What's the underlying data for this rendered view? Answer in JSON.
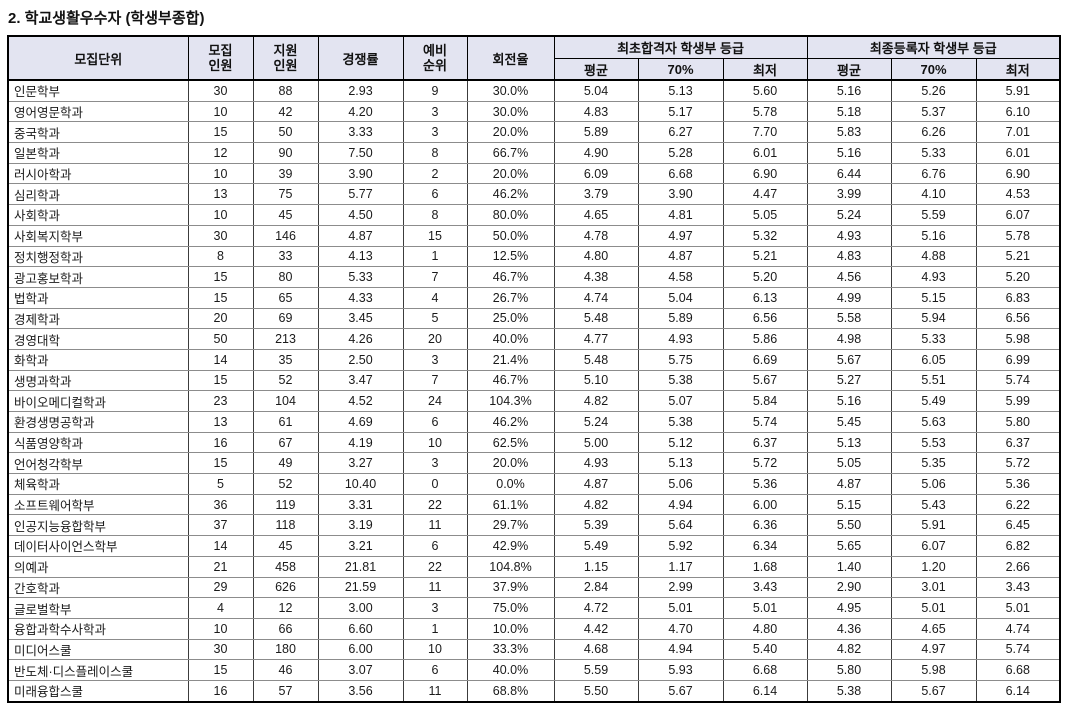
{
  "title": "2. 학교생활우수자 (학생부종합)",
  "colors": {
    "header_bg": "#e3e4f1",
    "outer_border": "#000000",
    "inner_vertical_border": "#3c3c3c",
    "inner_horizontal_border": "#8c8c8c"
  },
  "table": {
    "headers": {
      "unit": "모집단위",
      "recruit": "모집\n인원",
      "applicants": "지원\n인원",
      "ratio": "경쟁률",
      "reserve": "예비\n순위",
      "turnover": "회전율",
      "group_initial": "최초합격자 학생부 등급",
      "group_final": "최종등록자 학생부 등급",
      "sub_avg1": "평균",
      "sub_70_1": "70%",
      "sub_min1": "최저",
      "sub_avg2": "평균",
      "sub_70_2": "70%",
      "sub_min2": "최저"
    },
    "rows": [
      [
        "인문학부",
        "30",
        "88",
        "2.93",
        "9",
        "30.0%",
        "5.04",
        "5.13",
        "5.60",
        "5.16",
        "5.26",
        "5.91"
      ],
      [
        "영어영문학과",
        "10",
        "42",
        "4.20",
        "3",
        "30.0%",
        "4.83",
        "5.17",
        "5.78",
        "5.18",
        "5.37",
        "6.10"
      ],
      [
        "중국학과",
        "15",
        "50",
        "3.33",
        "3",
        "20.0%",
        "5.89",
        "6.27",
        "7.70",
        "5.83",
        "6.26",
        "7.01"
      ],
      [
        "일본학과",
        "12",
        "90",
        "7.50",
        "8",
        "66.7%",
        "4.90",
        "5.28",
        "6.01",
        "5.16",
        "5.33",
        "6.01"
      ],
      [
        "러시아학과",
        "10",
        "39",
        "3.90",
        "2",
        "20.0%",
        "6.09",
        "6.68",
        "6.90",
        "6.44",
        "6.76",
        "6.90"
      ],
      [
        "심리학과",
        "13",
        "75",
        "5.77",
        "6",
        "46.2%",
        "3.79",
        "3.90",
        "4.47",
        "3.99",
        "4.10",
        "4.53"
      ],
      [
        "사회학과",
        "10",
        "45",
        "4.50",
        "8",
        "80.0%",
        "4.65",
        "4.81",
        "5.05",
        "5.24",
        "5.59",
        "6.07"
      ],
      [
        "사회복지학부",
        "30",
        "146",
        "4.87",
        "15",
        "50.0%",
        "4.78",
        "4.97",
        "5.32",
        "4.93",
        "5.16",
        "5.78"
      ],
      [
        "정치행정학과",
        "8",
        "33",
        "4.13",
        "1",
        "12.5%",
        "4.80",
        "4.87",
        "5.21",
        "4.83",
        "4.88",
        "5.21"
      ],
      [
        "광고홍보학과",
        "15",
        "80",
        "5.33",
        "7",
        "46.7%",
        "4.38",
        "4.58",
        "5.20",
        "4.56",
        "4.93",
        "5.20"
      ],
      [
        "법학과",
        "15",
        "65",
        "4.33",
        "4",
        "26.7%",
        "4.74",
        "5.04",
        "6.13",
        "4.99",
        "5.15",
        "6.83"
      ],
      [
        "경제학과",
        "20",
        "69",
        "3.45",
        "5",
        "25.0%",
        "5.48",
        "5.89",
        "6.56",
        "5.58",
        "5.94",
        "6.56"
      ],
      [
        "경영대학",
        "50",
        "213",
        "4.26",
        "20",
        "40.0%",
        "4.77",
        "4.93",
        "5.86",
        "4.98",
        "5.33",
        "5.98"
      ],
      [
        "화학과",
        "14",
        "35",
        "2.50",
        "3",
        "21.4%",
        "5.48",
        "5.75",
        "6.69",
        "5.67",
        "6.05",
        "6.99"
      ],
      [
        "생명과학과",
        "15",
        "52",
        "3.47",
        "7",
        "46.7%",
        "5.10",
        "5.38",
        "5.67",
        "5.27",
        "5.51",
        "5.74"
      ],
      [
        "바이오메디컬학과",
        "23",
        "104",
        "4.52",
        "24",
        "104.3%",
        "4.82",
        "5.07",
        "5.84",
        "5.16",
        "5.49",
        "5.99"
      ],
      [
        "환경생명공학과",
        "13",
        "61",
        "4.69",
        "6",
        "46.2%",
        "5.24",
        "5.38",
        "5.74",
        "5.45",
        "5.63",
        "5.80"
      ],
      [
        "식품영양학과",
        "16",
        "67",
        "4.19",
        "10",
        "62.5%",
        "5.00",
        "5.12",
        "6.37",
        "5.13",
        "5.53",
        "6.37"
      ],
      [
        "언어청각학부",
        "15",
        "49",
        "3.27",
        "3",
        "20.0%",
        "4.93",
        "5.13",
        "5.72",
        "5.05",
        "5.35",
        "5.72"
      ],
      [
        "체육학과",
        "5",
        "52",
        "10.40",
        "0",
        "0.0%",
        "4.87",
        "5.06",
        "5.36",
        "4.87",
        "5.06",
        "5.36"
      ],
      [
        "소프트웨어학부",
        "36",
        "119",
        "3.31",
        "22",
        "61.1%",
        "4.82",
        "4.94",
        "6.00",
        "5.15",
        "5.43",
        "6.22"
      ],
      [
        "인공지능융합학부",
        "37",
        "118",
        "3.19",
        "11",
        "29.7%",
        "5.39",
        "5.64",
        "6.36",
        "5.50",
        "5.91",
        "6.45"
      ],
      [
        "데이터사이언스학부",
        "14",
        "45",
        "3.21",
        "6",
        "42.9%",
        "5.49",
        "5.92",
        "6.34",
        "5.65",
        "6.07",
        "6.82"
      ],
      [
        "의예과",
        "21",
        "458",
        "21.81",
        "22",
        "104.8%",
        "1.15",
        "1.17",
        "1.68",
        "1.40",
        "1.20",
        "2.66"
      ],
      [
        "간호학과",
        "29",
        "626",
        "21.59",
        "11",
        "37.9%",
        "2.84",
        "2.99",
        "3.43",
        "2.90",
        "3.01",
        "3.43"
      ],
      [
        "글로벌학부",
        "4",
        "12",
        "3.00",
        "3",
        "75.0%",
        "4.72",
        "5.01",
        "5.01",
        "4.95",
        "5.01",
        "5.01"
      ],
      [
        "융합과학수사학과",
        "10",
        "66",
        "6.60",
        "1",
        "10.0%",
        "4.42",
        "4.70",
        "4.80",
        "4.36",
        "4.65",
        "4.74"
      ],
      [
        "미디어스쿨",
        "30",
        "180",
        "6.00",
        "10",
        "33.3%",
        "4.68",
        "4.94",
        "5.40",
        "4.82",
        "4.97",
        "5.74"
      ],
      [
        "반도체·디스플레이스쿨",
        "15",
        "46",
        "3.07",
        "6",
        "40.0%",
        "5.59",
        "5.93",
        "6.68",
        "5.80",
        "5.98",
        "6.68"
      ],
      [
        "미래융합스쿨",
        "16",
        "57",
        "3.56",
        "11",
        "68.8%",
        "5.50",
        "5.67",
        "6.14",
        "5.38",
        "5.67",
        "6.14"
      ]
    ]
  }
}
